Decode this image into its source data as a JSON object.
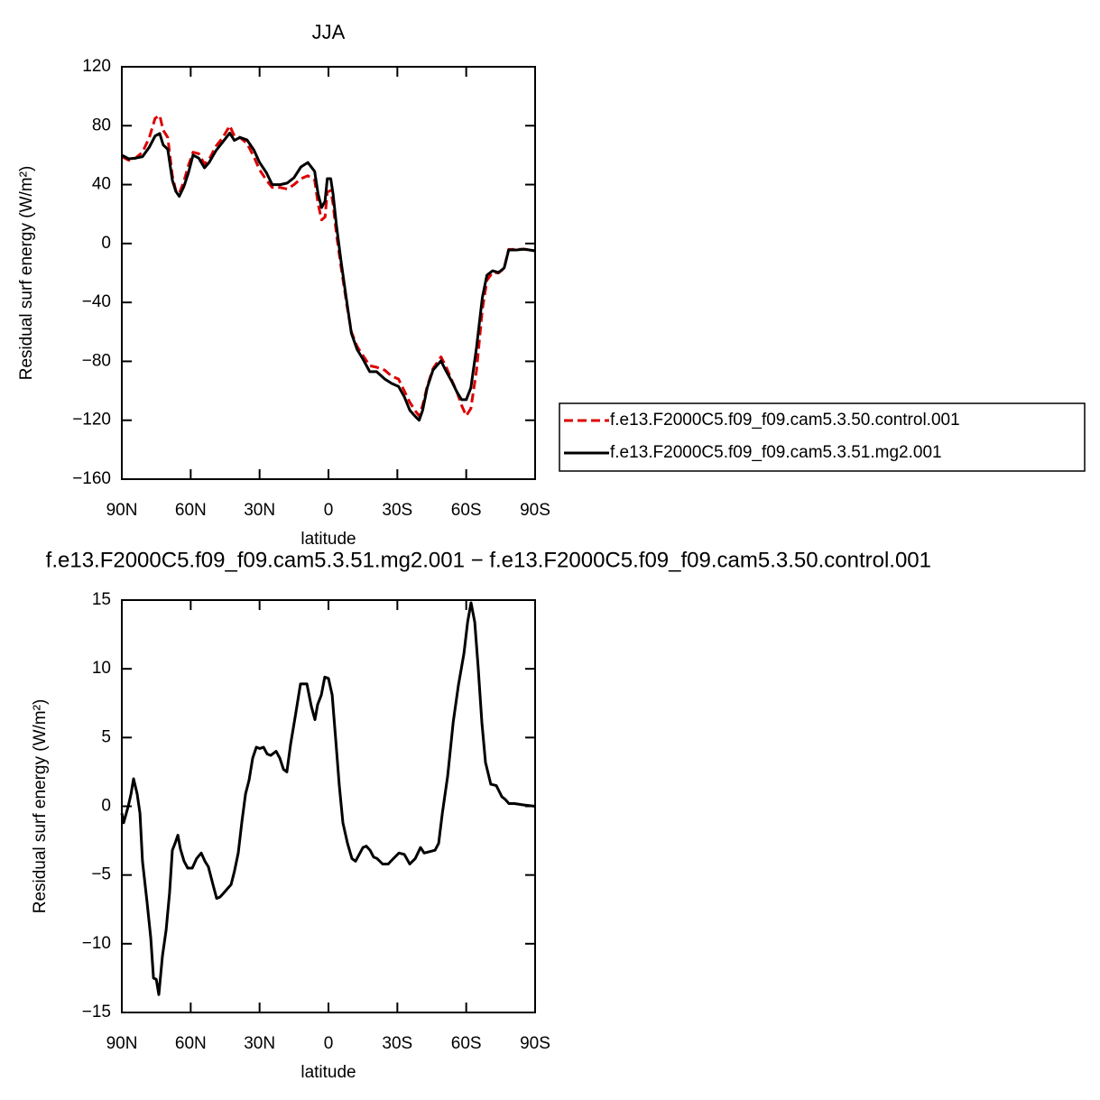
{
  "chart_data": [
    {
      "type": "line",
      "title": "JJA",
      "xlabel": "latitude",
      "ylabel": "Residual surf energy (W/m²)",
      "x": [
        90,
        87,
        84,
        81,
        78,
        75.5,
        73.5,
        72,
        70,
        68,
        66.5,
        65,
        63,
        61,
        59,
        56.5,
        54,
        52,
        49,
        46,
        43,
        41,
        38.5,
        35.5,
        32.5,
        30,
        27,
        24.5,
        21,
        18,
        15,
        12,
        9,
        6,
        4.5,
        3,
        1.5,
        0.5,
        -1,
        -2,
        -3.5,
        -5.5,
        -8,
        -10,
        -12.5,
        -15,
        -18,
        -21,
        -24.5,
        -27.5,
        -30.5,
        -33,
        -35.5,
        -38,
        -39.5,
        -41,
        -43,
        -45.5,
        -49,
        -51,
        -53.5,
        -56,
        -58,
        -60,
        -62,
        -64.5,
        -67,
        -69,
        -71.5,
        -74,
        -76.5,
        -78.5,
        -82,
        -85,
        -87.5,
        -90
      ],
      "series": [
        {
          "name": "f.e13.F2000C5.f09_f09.cam5.3.50.control.001",
          "color": "#dd0000",
          "linestyle": "dashed",
          "values": [
            59,
            56.5,
            58,
            62,
            72,
            85,
            87,
            77,
            72,
            46,
            36,
            34,
            42,
            53,
            62,
            61,
            54,
            57,
            66,
            72,
            80,
            73,
            72,
            68,
            59,
            50,
            43,
            38,
            38,
            37,
            40,
            44,
            46,
            43,
            27,
            16,
            18,
            35,
            36,
            27,
            6,
            -16,
            -42,
            -60,
            -70,
            -76,
            -83,
            -84,
            -86,
            -90,
            -92,
            -100,
            -108,
            -114,
            -117,
            -110,
            -97,
            -85,
            -77,
            -83,
            -92,
            -101,
            -110,
            -117,
            -112,
            -86,
            -45,
            -25,
            -19.5,
            -20,
            -17,
            -4,
            -4,
            -3.8,
            -4.2,
            -5
          ]
        },
        {
          "name": "f.e13.F2000C5.f09_f09.cam5.3.51.mg2.001",
          "color": "#000000",
          "linestyle": "solid",
          "values": [
            60,
            57.5,
            58,
            59,
            65.5,
            73,
            74.7,
            67,
            64,
            43,
            35.5,
            32,
            38.5,
            48,
            60,
            58,
            51.4,
            55,
            63,
            69,
            75,
            70,
            72,
            70.4,
            63.6,
            55,
            48,
            40,
            40,
            41,
            44.7,
            52,
            55,
            49,
            33.6,
            24.4,
            28.7,
            44,
            44,
            33.6,
            12,
            -12.3,
            -40,
            -61,
            -72,
            -78.5,
            -87,
            -87,
            -92,
            -95,
            -97,
            -104,
            -113.4,
            -117.7,
            -120,
            -113.4,
            -98,
            -86,
            -79.7,
            -86,
            -93,
            -101,
            -106,
            -106,
            -98,
            -70.5,
            -36.8,
            -21.5,
            -18.5,
            -19.7,
            -16.6,
            -4.4,
            -4.4,
            -3.8,
            -4.4,
            -5
          ]
        }
      ],
      "xlim": [
        90,
        -90
      ],
      "xticks": [
        {
          "value": 90,
          "label": "90N"
        },
        {
          "value": 60,
          "label": "60N"
        },
        {
          "value": 30,
          "label": "30N"
        },
        0,
        {
          "value": -30,
          "label": "30S"
        },
        {
          "value": -60,
          "label": "60S"
        },
        {
          "value": -90,
          "label": "90S"
        }
      ],
      "ylim": [
        -160,
        120
      ],
      "yticks": [
        {
          "value": -160,
          "label": "−160"
        },
        {
          "value": -120,
          "label": "−120"
        },
        {
          "value": -80,
          "label": "−80"
        },
        {
          "value": -40,
          "label": "−40"
        },
        0,
        40,
        80,
        120
      ],
      "legend": "right"
    },
    {
      "type": "line",
      "title": "f.e13.F2000C5.f09_f09.cam5.3.51.mg2.001 − f.e13.F2000C5.f09_f09.cam5.3.50.control.001",
      "xlabel": "latitude",
      "ylabel": "Residual surf energy (W/m²)",
      "x": [
        90,
        89.2,
        87.2,
        86,
        84.9,
        83.3,
        82.1,
        81,
        79,
        77.4,
        76.2,
        75,
        73.9,
        72.3,
        70.7,
        69.2,
        68,
        66.8,
        65.6,
        64.5,
        62.9,
        61.3,
        59.3,
        57.4,
        55.4,
        53.8,
        52.3,
        50.3,
        48.7,
        47.2,
        45.6,
        44,
        42.4,
        40.9,
        39.3,
        37.7,
        36.1,
        34.6,
        33,
        31.4,
        29.9,
        28.3,
        26.7,
        25.1,
        22.8,
        21.2,
        19.6,
        18.1,
        16.5,
        14.5,
        12.2,
        9.4,
        7.5,
        5.9,
        4.7,
        3.1,
        1.6,
        0,
        -1.6,
        -3.2,
        -4.7,
        -6.3,
        -8.3,
        -10.2,
        -11.8,
        -13.4,
        -15,
        -16.5,
        -18.1,
        -19.7,
        -21.2,
        -23.6,
        -26,
        -28.3,
        -30.7,
        -33,
        -35.4,
        -37.8,
        -40.1,
        -41.7,
        -44,
        -46.4,
        -48,
        -49.6,
        -51.9,
        -54.3,
        -56.6,
        -59,
        -60.6,
        -62.1,
        -63.7,
        -65.2,
        -66.8,
        -68.4,
        -70.7,
        -73.1,
        -75.5,
        -77,
        -78.6,
        -81,
        -84.9,
        -90
      ],
      "series": [
        {
          "color": "#000000",
          "linestyle": "solid",
          "values": [
            -0.5,
            -1.2,
            0,
            0.9,
            2,
            0.9,
            -0.5,
            -4,
            -7,
            -9.6,
            -12.5,
            -12.6,
            -13.7,
            -10.9,
            -9,
            -6.3,
            -3.2,
            -2.7,
            -2.1,
            -3.1,
            -4,
            -4.5,
            -4.5,
            -3.8,
            -3.4,
            -4,
            -4.4,
            -5.7,
            -6.7,
            -6.6,
            -6.3,
            -6,
            -5.7,
            -4.7,
            -3.4,
            -1.1,
            0.9,
            1.9,
            3.5,
            4.3,
            4.2,
            4.3,
            3.8,
            3.7,
            4,
            3.5,
            2.7,
            2.5,
            4.5,
            6.5,
            8.9,
            8.9,
            7.3,
            6.3,
            7.4,
            8.1,
            9.4,
            9.3,
            8.1,
            4.8,
            1.5,
            -1.2,
            -2.7,
            -3.8,
            -4,
            -3.5,
            -3,
            -2.9,
            -3.2,
            -3.7,
            -3.8,
            -4.2,
            -4.2,
            -3.8,
            -3.4,
            -3.5,
            -4.2,
            -3.8,
            -3,
            -3.4,
            -3.3,
            -3.2,
            -2.7,
            -0.5,
            2.2,
            6.1,
            8.8,
            11.1,
            13.4,
            14.8,
            13.4,
            10.1,
            6.1,
            3.2,
            1.6,
            1.5,
            0.7,
            0.5,
            0.2,
            0.2,
            0.1,
            0
          ]
        }
      ],
      "xlim": [
        90,
        -90
      ],
      "xticks": [
        {
          "value": 90,
          "label": "90N"
        },
        {
          "value": 60,
          "label": "60N"
        },
        {
          "value": 30,
          "label": "30N"
        },
        0,
        {
          "value": -30,
          "label": "30S"
        },
        {
          "value": -60,
          "label": "60S"
        },
        {
          "value": -90,
          "label": "90S"
        }
      ],
      "ylim": [
        -15,
        15
      ],
      "yticks": [
        {
          "value": -15,
          "label": "−15"
        },
        {
          "value": -10,
          "label": "−10"
        },
        {
          "value": -5,
          "label": "−5"
        },
        0,
        5,
        10,
        15
      ]
    }
  ]
}
